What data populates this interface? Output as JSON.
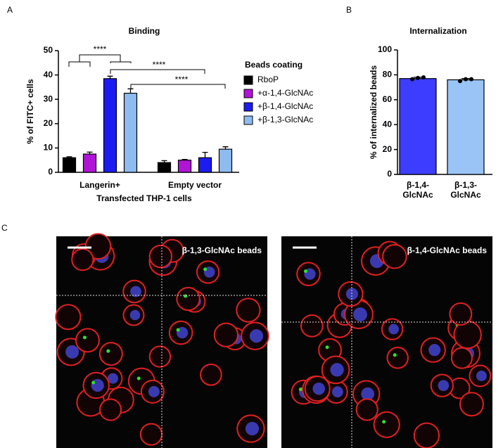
{
  "chart_data": [
    {
      "type": "bar",
      "panel": "A",
      "title": "Binding",
      "ylabel": "% of FITC+ cells",
      "xlabel": "Transfected THP-1 cells",
      "categories": [
        "Langerin+",
        "Empty vector"
      ],
      "series": [
        {
          "name": "RboP",
          "color": "#000000",
          "values": [
            6,
            4
          ],
          "errors": [
            0.4,
            0.8
          ]
        },
        {
          "name": "+α-1,4-GlcNAc",
          "color": "#b014d6",
          "values": [
            7.5,
            5
          ],
          "errors": [
            0.8,
            0.3
          ]
        },
        {
          "name": "+β-1,4-GlcNAc",
          "color": "#1c1cf0",
          "values": [
            38.5,
            6
          ],
          "errors": [
            1,
            2.2
          ]
        },
        {
          "name": "+β-1,3-GlcNAc",
          "color": "#8fbcf0",
          "values": [
            32.5,
            9.5
          ],
          "errors": [
            1.8,
            1
          ]
        }
      ],
      "legend_title": "Beads coating",
      "annotations": [
        "****",
        "****",
        "****"
      ],
      "ylim": [
        0,
        50
      ],
      "yticks": [
        0,
        10,
        20,
        30,
        40,
        50
      ]
    },
    {
      "type": "bar",
      "panel": "B",
      "title": "Internalization",
      "ylabel": "% of internalized beads",
      "categories": [
        "β-1,4-GlcNAc",
        "β-1,3-GlcNAc"
      ],
      "values": [
        77,
        76
      ],
      "errors": [
        1,
        1
      ],
      "colors": [
        "#3d3dff",
        "#99c4f5"
      ],
      "points": [
        [
          76.5,
          77.5,
          78
        ],
        [
          75,
          76.5,
          76.5
        ]
      ],
      "ylim": [
        0,
        100
      ],
      "yticks": [
        0,
        20,
        40,
        60,
        80,
        100
      ]
    }
  ],
  "panel_c": "C",
  "images": [
    {
      "caption": "β-1,3-GlcNAc beads"
    },
    {
      "caption": "β-1,4-GlcNAc beads"
    }
  ]
}
